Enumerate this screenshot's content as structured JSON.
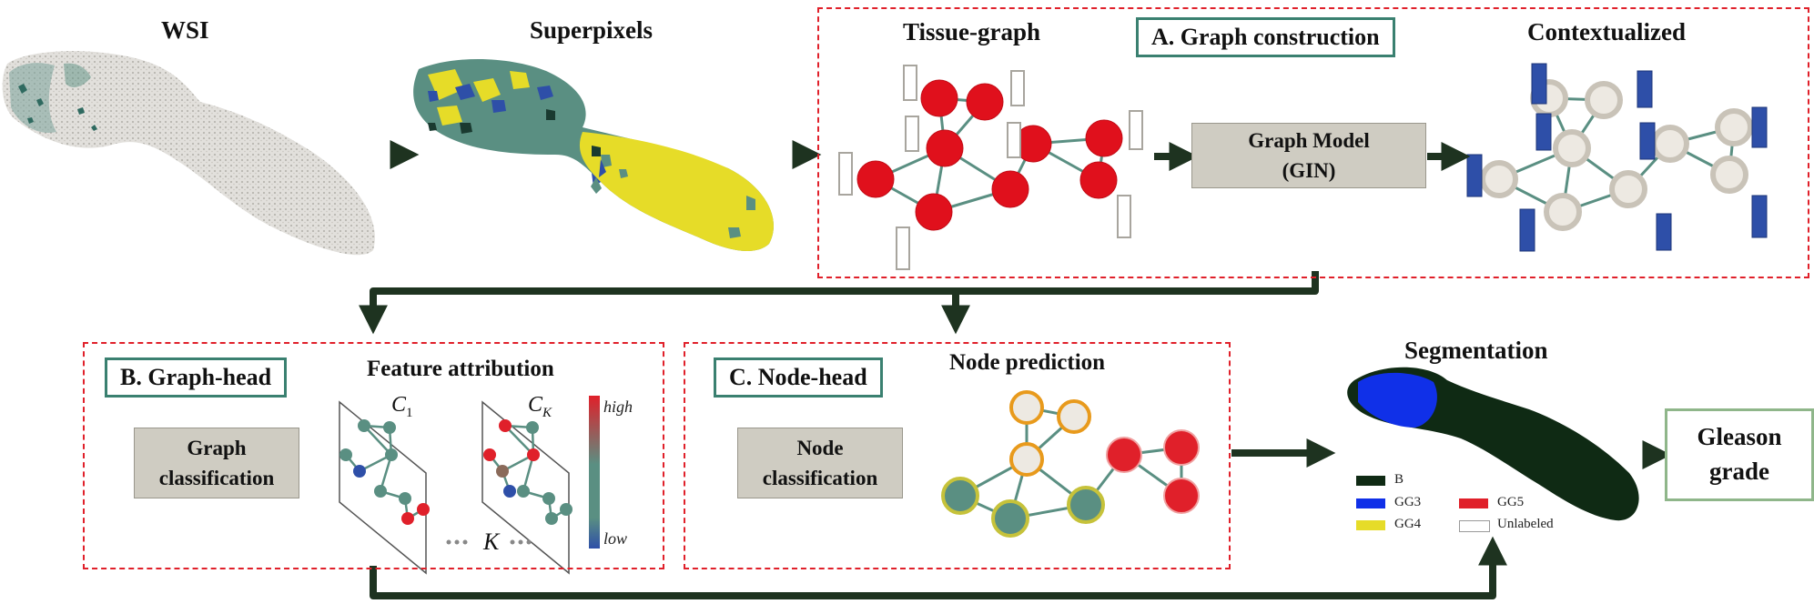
{
  "stages": {
    "wsi": "WSI",
    "superpixels": "Superpixels",
    "tissue_graph": "Tissue-graph",
    "contextualized": "Contextualized"
  },
  "section_a": {
    "title": "A. Graph construction",
    "model_line1": "Graph Model",
    "model_line2": "(GIN)"
  },
  "section_b": {
    "title": "B. Graph-head",
    "subtitle": "Feature attribution",
    "box_line1": "Graph",
    "box_line2": "classification",
    "class_first": "C",
    "class_first_sub": "1",
    "class_last": "C",
    "class_last_sub": "K",
    "k_label": "K",
    "scale_high": "high",
    "scale_low": "low"
  },
  "section_c": {
    "title": "C. Node-head",
    "subtitle": "Node prediction",
    "box_line1": "Node",
    "box_line2": "classification"
  },
  "segmentation": {
    "title": "Segmentation",
    "legend": [
      {
        "label": "B",
        "color": "#0f2a14"
      },
      {
        "label": "GG3",
        "color": "#1030e8"
      },
      {
        "label": "GG5",
        "color": "#e0202a"
      },
      {
        "label": "GG4",
        "color": "#e6dc28"
      },
      {
        "label": "Unlabeled",
        "color": "#ffffff"
      }
    ]
  },
  "output": {
    "line1": "Gleason",
    "line2": "grade"
  },
  "colors": {
    "arrow": "#1e3320",
    "dashed_border": "#e0202a",
    "box_border": "#3a8070",
    "box_fill": "#cfccc2",
    "node_red": "#e0101c",
    "node_teal": "#5a8f82",
    "node_grey": "#d0cbc2",
    "feature_blue": "#2e4fa8",
    "superpixel_yellow": "#e6dc28",
    "segmentation_dark": "#0f2a14"
  }
}
